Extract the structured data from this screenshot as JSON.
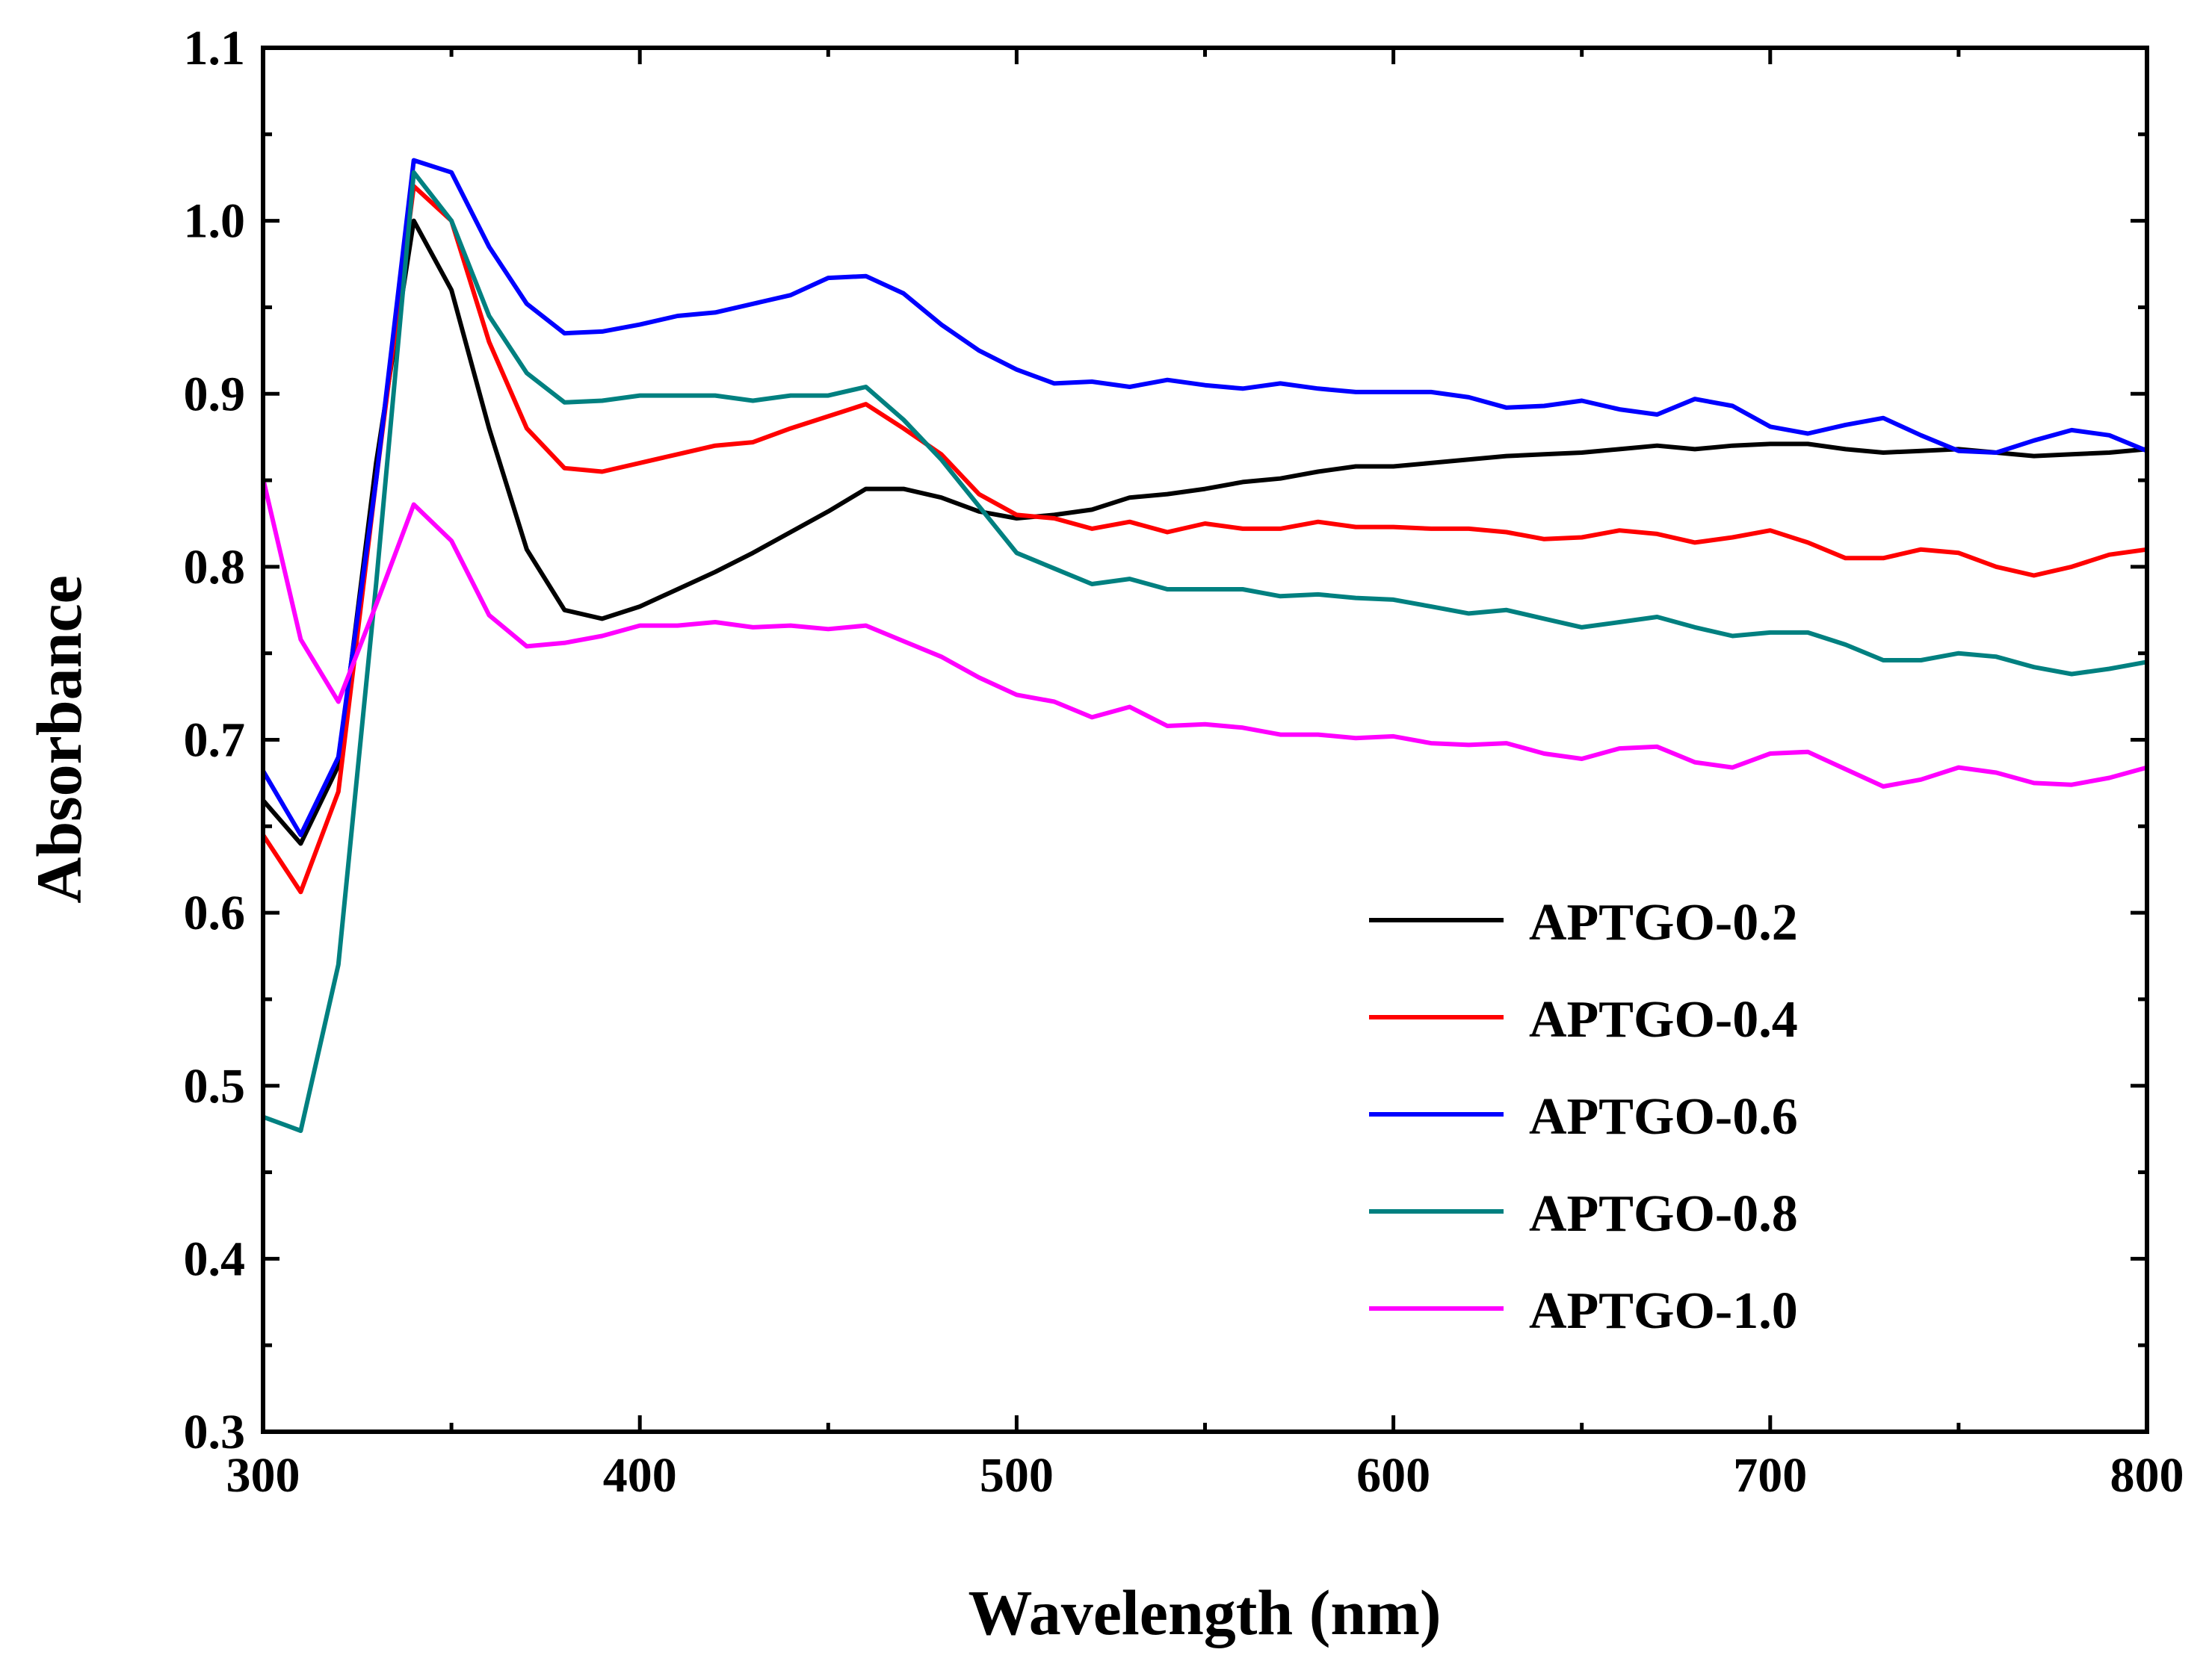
{
  "chart_data": {
    "type": "line",
    "title": "",
    "xlabel": "Wavelength (nm)",
    "ylabel": "Absorbance",
    "xlim": [
      300,
      800
    ],
    "ylim": [
      0.3,
      1.1
    ],
    "xticks": [
      300,
      400,
      500,
      600,
      700,
      800
    ],
    "xtick_labels": [
      "300",
      "400",
      "500",
      "600",
      "700",
      "800"
    ],
    "yticks": [
      0.3,
      0.4,
      0.5,
      0.6,
      0.7,
      0.8,
      0.9,
      1.0,
      1.1
    ],
    "ytick_labels": [
      "0.3",
      "0.4",
      "0.5",
      "0.6",
      "0.7",
      "0.8",
      "0.9",
      "1.0",
      "1.1"
    ],
    "grid": false,
    "legend_position": "lower-right",
    "series": [
      {
        "name": "APTGO-0.2",
        "color": "#000000",
        "x": [
          300,
          310,
          320,
          330,
          340,
          350,
          360,
          370,
          380,
          390,
          400,
          410,
          420,
          430,
          440,
          450,
          460,
          470,
          480,
          490,
          500,
          510,
          520,
          530,
          540,
          550,
          560,
          570,
          580,
          590,
          600,
          610,
          620,
          630,
          640,
          650,
          660,
          670,
          680,
          690,
          700,
          710,
          720,
          730,
          740,
          750,
          760,
          770,
          780,
          790,
          800
        ],
        "y": [
          0.665,
          0.64,
          0.685,
          0.86,
          1.0,
          0.96,
          0.88,
          0.81,
          0.775,
          0.77,
          0.777,
          0.787,
          0.797,
          0.808,
          0.82,
          0.832,
          0.845,
          0.845,
          0.84,
          0.832,
          0.828,
          0.83,
          0.833,
          0.84,
          0.842,
          0.845,
          0.849,
          0.851,
          0.855,
          0.858,
          0.858,
          0.86,
          0.862,
          0.864,
          0.865,
          0.866,
          0.868,
          0.87,
          0.868,
          0.87,
          0.871,
          0.871,
          0.868,
          0.866,
          0.867,
          0.868,
          0.866,
          0.864,
          0.865,
          0.866,
          0.868
        ]
      },
      {
        "name": "APTGO-0.4",
        "color": "#ff0000",
        "x": [
          300,
          310,
          320,
          330,
          340,
          350,
          360,
          370,
          380,
          390,
          400,
          410,
          420,
          430,
          440,
          450,
          460,
          470,
          480,
          490,
          500,
          510,
          520,
          530,
          540,
          550,
          560,
          570,
          580,
          590,
          600,
          610,
          620,
          630,
          640,
          650,
          660,
          670,
          680,
          690,
          700,
          710,
          720,
          730,
          740,
          750,
          760,
          770,
          780,
          790,
          800
        ],
        "y": [
          0.645,
          0.612,
          0.67,
          0.85,
          1.02,
          1.0,
          0.93,
          0.88,
          0.857,
          0.855,
          0.86,
          0.865,
          0.87,
          0.872,
          0.88,
          0.887,
          0.894,
          0.88,
          0.865,
          0.842,
          0.83,
          0.828,
          0.822,
          0.826,
          0.82,
          0.825,
          0.822,
          0.822,
          0.826,
          0.823,
          0.823,
          0.822,
          0.822,
          0.82,
          0.816,
          0.817,
          0.821,
          0.819,
          0.814,
          0.817,
          0.821,
          0.814,
          0.805,
          0.805,
          0.81,
          0.808,
          0.8,
          0.795,
          0.8,
          0.807,
          0.81
        ]
      },
      {
        "name": "APTGO-0.6",
        "color": "#0000ff",
        "x": [
          300,
          310,
          320,
          330,
          340,
          350,
          360,
          370,
          380,
          390,
          400,
          410,
          420,
          430,
          440,
          450,
          460,
          470,
          480,
          490,
          500,
          510,
          520,
          530,
          540,
          550,
          560,
          570,
          580,
          590,
          600,
          610,
          620,
          630,
          640,
          650,
          660,
          670,
          680,
          690,
          700,
          710,
          720,
          730,
          740,
          750,
          760,
          770,
          780,
          790,
          800
        ],
        "y": [
          0.682,
          0.645,
          0.69,
          0.85,
          1.035,
          1.028,
          0.985,
          0.952,
          0.935,
          0.936,
          0.94,
          0.945,
          0.947,
          0.952,
          0.957,
          0.967,
          0.968,
          0.958,
          0.94,
          0.925,
          0.914,
          0.906,
          0.907,
          0.904,
          0.908,
          0.905,
          0.903,
          0.906,
          0.903,
          0.901,
          0.901,
          0.901,
          0.898,
          0.892,
          0.893,
          0.896,
          0.891,
          0.888,
          0.897,
          0.893,
          0.881,
          0.877,
          0.882,
          0.886,
          0.876,
          0.867,
          0.866,
          0.873,
          0.879,
          0.876,
          0.867
        ]
      },
      {
        "name": "APTGO-0.8",
        "color": "#008080",
        "x": [
          300,
          310,
          320,
          330,
          340,
          350,
          360,
          370,
          380,
          390,
          400,
          410,
          420,
          430,
          440,
          450,
          460,
          470,
          480,
          490,
          500,
          510,
          520,
          530,
          540,
          550,
          560,
          570,
          580,
          590,
          600,
          610,
          620,
          630,
          640,
          650,
          660,
          670,
          680,
          690,
          700,
          710,
          720,
          730,
          740,
          750,
          760,
          770,
          780,
          790,
          800
        ],
        "y": [
          0.482,
          0.474,
          0.57,
          0.79,
          1.028,
          1.0,
          0.945,
          0.912,
          0.895,
          0.896,
          0.899,
          0.899,
          0.899,
          0.896,
          0.899,
          0.899,
          0.904,
          0.885,
          0.862,
          0.835,
          0.808,
          0.799,
          0.79,
          0.793,
          0.787,
          0.787,
          0.787,
          0.783,
          0.784,
          0.782,
          0.781,
          0.777,
          0.773,
          0.775,
          0.77,
          0.765,
          0.768,
          0.771,
          0.765,
          0.76,
          0.762,
          0.762,
          0.755,
          0.746,
          0.746,
          0.75,
          0.748,
          0.742,
          0.738,
          0.741,
          0.745
        ]
      },
      {
        "name": "APTGO-1.0",
        "color": "#ff00ff",
        "x": [
          300,
          310,
          320,
          330,
          340,
          350,
          360,
          370,
          380,
          390,
          400,
          410,
          420,
          430,
          440,
          450,
          460,
          470,
          480,
          490,
          500,
          510,
          520,
          530,
          540,
          550,
          560,
          570,
          580,
          590,
          600,
          610,
          620,
          630,
          640,
          650,
          660,
          670,
          680,
          690,
          700,
          710,
          720,
          730,
          740,
          750,
          760,
          770,
          780,
          790,
          800
        ],
        "y": [
          0.851,
          0.758,
          0.722,
          0.778,
          0.836,
          0.815,
          0.772,
          0.754,
          0.756,
          0.76,
          0.766,
          0.766,
          0.768,
          0.765,
          0.766,
          0.764,
          0.766,
          0.757,
          0.748,
          0.736,
          0.726,
          0.722,
          0.713,
          0.719,
          0.708,
          0.709,
          0.707,
          0.703,
          0.703,
          0.701,
          0.702,
          0.698,
          0.697,
          0.698,
          0.692,
          0.689,
          0.695,
          0.696,
          0.687,
          0.684,
          0.692,
          0.693,
          0.683,
          0.673,
          0.677,
          0.684,
          0.681,
          0.675,
          0.674,
          0.678,
          0.684
        ]
      }
    ]
  }
}
